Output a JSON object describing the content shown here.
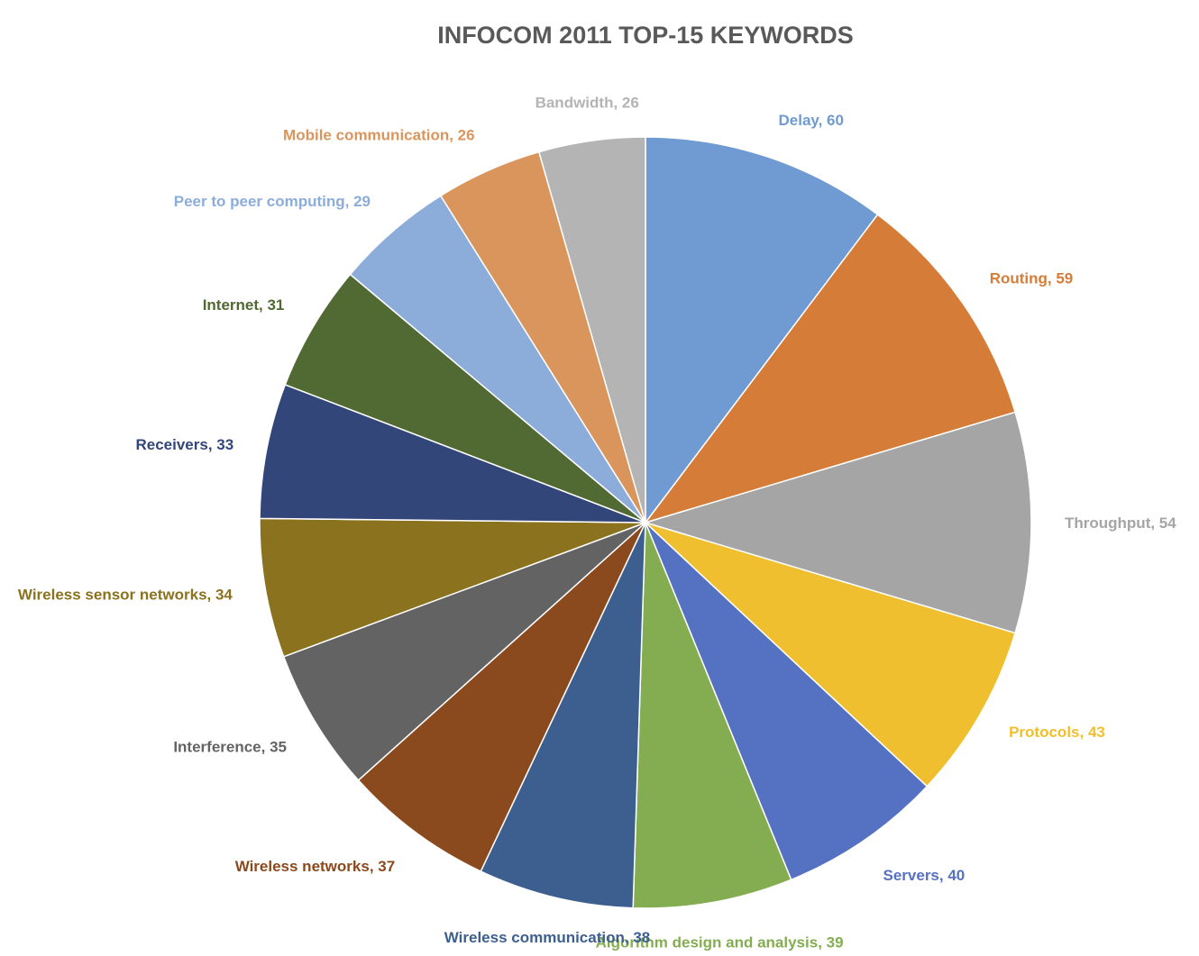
{
  "chart_data": {
    "type": "pie",
    "title": "INFOCOM 2011 TOP-15 KEYWORDS",
    "slices": [
      {
        "label": "Delay",
        "value": 60,
        "display": "Delay, 60",
        "color": "#6f9ad2"
      },
      {
        "label": "Routing",
        "value": 59,
        "display": "Routing, 59",
        "color": "#d57c38"
      },
      {
        "label": "Throughput",
        "value": 54,
        "display": "Throughput, 54",
        "color": "#a5a5a5"
      },
      {
        "label": "Protocols",
        "value": 43,
        "display": "Protocols, 43",
        "color": "#f0bf2f"
      },
      {
        "label": "Servers",
        "value": 40,
        "display": "Servers, 40",
        "color": "#5571c2"
      },
      {
        "label": "Algorithm design and analysis",
        "value": 39,
        "display": "Algorithm design and analysis, 39",
        "color": "#84ad51"
      },
      {
        "label": "Wireless communication",
        "value": 38,
        "display": "Wireless communication, 38",
        "color": "#3d5f8f"
      },
      {
        "label": "Wireless networks",
        "value": 37,
        "display": "Wireless networks, 37",
        "color": "#8b4a1d"
      },
      {
        "label": "Interference",
        "value": 35,
        "display": "Interference, 35",
        "color": "#636363"
      },
      {
        "label": "Wireless sensor networks",
        "value": 34,
        "display": "Wireless sensor networks, 34",
        "color": "#8b721f"
      },
      {
        "label": "Receivers",
        "value": 33,
        "display": "Receivers, 33",
        "color": "#33467a"
      },
      {
        "label": "Internet",
        "value": 31,
        "display": "Internet, 31",
        "color": "#516932"
      },
      {
        "label": "Peer to peer computing",
        "value": 29,
        "display": "Peer to peer computing, 29",
        "color": "#8cadda"
      },
      {
        "label": "Mobile communication",
        "value": 26,
        "display": "Mobile communication, 26",
        "color": "#da955d"
      },
      {
        "label": "Bandwidth",
        "value": 26,
        "display": "Bandwidth, 26",
        "color": "#b4b4b4"
      }
    ],
    "label_colors": [
      "#6f9ad2",
      "#d57c38",
      "#a5a5a5",
      "#f0bf2f",
      "#5571c2",
      "#84ad51",
      "#3d5f8f",
      "#8b4a1d",
      "#636363",
      "#8b721f",
      "#33467a",
      "#516932",
      "#8cadda",
      "#da955d",
      "#b4b4b4"
    ],
    "legend": "none",
    "data_labels": "outside"
  }
}
